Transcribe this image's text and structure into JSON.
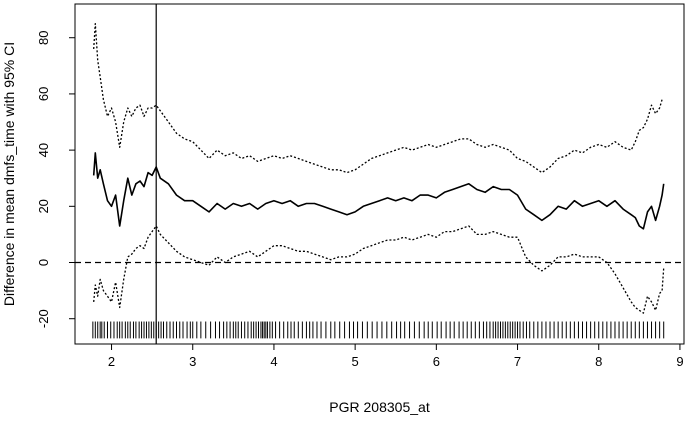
{
  "chart_data": {
    "type": "line",
    "title": "",
    "xlabel": "PGR 208305_at",
    "ylabel": "Difference in mean dmfs_time with 95% CI",
    "xlim": [
      1.55,
      9.05
    ],
    "ylim": [
      -29,
      92
    ],
    "x_ticks": [
      2,
      3,
      4,
      5,
      6,
      7,
      8,
      9
    ],
    "y_ticks": [
      -20,
      0,
      20,
      40,
      60,
      80
    ],
    "grid": false,
    "legend": "none",
    "reference_lines": {
      "horizontal_dashed_y": 0,
      "vertical_x": 2.55
    },
    "series": [
      {
        "role": "estimate",
        "style": "solid",
        "x": [
          1.78,
          1.8,
          1.83,
          1.86,
          1.9,
          1.95,
          2.0,
          2.05,
          2.1,
          2.15,
          2.2,
          2.25,
          2.3,
          2.35,
          2.4,
          2.45,
          2.5,
          2.55,
          2.6,
          2.7,
          2.8,
          2.9,
          3.0,
          3.1,
          3.2,
          3.3,
          3.4,
          3.5,
          3.6,
          3.7,
          3.8,
          3.9,
          4.0,
          4.1,
          4.2,
          4.3,
          4.4,
          4.5,
          4.6,
          4.7,
          4.8,
          4.9,
          5.0,
          5.1,
          5.2,
          5.3,
          5.4,
          5.5,
          5.6,
          5.7,
          5.8,
          5.9,
          6.0,
          6.1,
          6.2,
          6.3,
          6.4,
          6.5,
          6.6,
          6.7,
          6.8,
          6.9,
          7.0,
          7.1,
          7.2,
          7.3,
          7.4,
          7.5,
          7.6,
          7.7,
          7.8,
          7.9,
          8.0,
          8.1,
          8.2,
          8.3,
          8.4,
          8.45,
          8.5,
          8.55,
          8.6,
          8.65,
          8.7,
          8.75,
          8.78,
          8.8
        ],
        "y": [
          31,
          39,
          30,
          33,
          28,
          22,
          20,
          24,
          13,
          22,
          30,
          24,
          28,
          29,
          27,
          32,
          31,
          34,
          30,
          28,
          24,
          22,
          22,
          20,
          18,
          21,
          19,
          21,
          20,
          21,
          19,
          21,
          22,
          21,
          22,
          20,
          21,
          21,
          20,
          19,
          18,
          17,
          18,
          20,
          21,
          22,
          23,
          22,
          23,
          22,
          24,
          24,
          23,
          25,
          26,
          27,
          28,
          26,
          25,
          27,
          26,
          26,
          24,
          19,
          17,
          15,
          17,
          20,
          19,
          22,
          20,
          21,
          22,
          20,
          22,
          19,
          17,
          16,
          13,
          12,
          18,
          20,
          15,
          20,
          24,
          28
        ]
      },
      {
        "role": "upper_ci",
        "style": "dotted",
        "x": [
          1.78,
          1.8,
          1.83,
          1.86,
          1.9,
          1.95,
          2.0,
          2.05,
          2.1,
          2.15,
          2.2,
          2.25,
          2.3,
          2.35,
          2.4,
          2.45,
          2.5,
          2.55,
          2.6,
          2.7,
          2.8,
          2.9,
          3.0,
          3.1,
          3.2,
          3.3,
          3.4,
          3.5,
          3.6,
          3.7,
          3.8,
          3.9,
          4.0,
          4.1,
          4.2,
          4.3,
          4.4,
          4.5,
          4.6,
          4.7,
          4.8,
          4.9,
          5.0,
          5.1,
          5.2,
          5.3,
          5.4,
          5.5,
          5.6,
          5.7,
          5.8,
          5.9,
          6.0,
          6.1,
          6.2,
          6.3,
          6.4,
          6.5,
          6.6,
          6.7,
          6.8,
          6.9,
          7.0,
          7.1,
          7.2,
          7.3,
          7.4,
          7.5,
          7.6,
          7.7,
          7.8,
          7.9,
          8.0,
          8.1,
          8.2,
          8.3,
          8.4,
          8.45,
          8.5,
          8.55,
          8.6,
          8.65,
          8.7,
          8.75,
          8.78,
          8.8
        ],
        "y": [
          76,
          85,
          72,
          66,
          58,
          52,
          55,
          50,
          41,
          50,
          55,
          52,
          55,
          56,
          52,
          55,
          55,
          56,
          54,
          50,
          46,
          44,
          43,
          40,
          37,
          40,
          38,
          39,
          37,
          38,
          36,
          37,
          38,
          37,
          38,
          37,
          36,
          35,
          34,
          33,
          33,
          32,
          33,
          35,
          37,
          38,
          39,
          40,
          41,
          40,
          41,
          42,
          41,
          42,
          43,
          44,
          44,
          42,
          41,
          42,
          41,
          40,
          37,
          36,
          34,
          32,
          34,
          37,
          38,
          40,
          39,
          41,
          42,
          41,
          43,
          41,
          40,
          43,
          47,
          48,
          51,
          56,
          53,
          55,
          58,
          58
        ]
      },
      {
        "role": "lower_ci",
        "style": "dotted",
        "x": [
          1.78,
          1.8,
          1.83,
          1.86,
          1.9,
          1.95,
          2.0,
          2.05,
          2.1,
          2.15,
          2.2,
          2.25,
          2.3,
          2.35,
          2.4,
          2.45,
          2.5,
          2.55,
          2.6,
          2.7,
          2.8,
          2.9,
          3.0,
          3.1,
          3.2,
          3.3,
          3.4,
          3.5,
          3.6,
          3.7,
          3.8,
          3.9,
          4.0,
          4.1,
          4.2,
          4.3,
          4.4,
          4.5,
          4.6,
          4.7,
          4.8,
          4.9,
          5.0,
          5.1,
          5.2,
          5.3,
          5.4,
          5.5,
          5.6,
          5.7,
          5.8,
          5.9,
          6.0,
          6.1,
          6.2,
          6.3,
          6.4,
          6.5,
          6.6,
          6.7,
          6.8,
          6.9,
          7.0,
          7.1,
          7.2,
          7.3,
          7.4,
          7.5,
          7.6,
          7.7,
          7.8,
          7.9,
          8.0,
          8.1,
          8.2,
          8.3,
          8.4,
          8.45,
          8.5,
          8.55,
          8.6,
          8.65,
          8.7,
          8.75,
          8.78,
          8.8
        ],
        "y": [
          -14,
          -8,
          -12,
          -6,
          -10,
          -12,
          -14,
          -7,
          -16,
          -6,
          2,
          3,
          5,
          6,
          5,
          9,
          11,
          13,
          10,
          7,
          4,
          2,
          1,
          0,
          -1,
          2,
          0,
          2,
          3,
          4,
          2,
          4,
          6,
          6,
          5,
          4,
          4,
          3,
          2,
          1,
          2,
          2,
          3,
          5,
          6,
          7,
          8,
          8,
          9,
          8,
          9,
          10,
          9,
          11,
          11,
          12,
          13,
          10,
          10,
          11,
          10,
          9,
          9,
          2,
          -1,
          -3,
          -1,
          2,
          2,
          3,
          2,
          2,
          2,
          0,
          -4,
          -9,
          -14,
          -16,
          -17,
          -18,
          -12,
          -14,
          -17,
          -11,
          -10,
          -2
        ]
      }
    ],
    "rug_x": [
      1.77,
      1.8,
      1.83,
      1.86,
      1.88,
      1.91,
      1.95,
      1.99,
      2.03,
      2.07,
      2.1,
      2.13,
      2.17,
      2.2,
      2.23,
      2.27,
      2.3,
      2.34,
      2.37,
      2.4,
      2.43,
      2.46,
      2.49,
      2.52,
      2.55,
      2.58,
      2.61,
      2.64,
      2.68,
      2.72,
      2.76,
      2.8,
      2.84,
      2.88,
      2.93,
      2.97,
      3.0,
      3.05,
      3.1,
      3.16,
      3.22,
      3.28,
      3.33,
      3.38,
      3.42,
      3.46,
      3.5,
      3.53,
      3.56,
      3.6,
      3.64,
      3.68,
      3.72,
      3.75,
      3.78,
      3.81,
      3.84,
      3.86,
      3.88,
      3.9,
      3.92,
      3.95,
      3.98,
      4.02,
      4.07,
      4.12,
      4.17,
      4.21,
      4.25,
      4.3,
      4.35,
      4.4,
      4.44,
      4.48,
      4.53,
      4.58,
      4.64,
      4.7,
      4.75,
      4.81,
      4.87,
      4.93,
      4.98,
      5.03,
      5.09,
      5.15,
      5.21,
      5.27,
      5.33,
      5.39,
      5.45,
      5.51,
      5.56,
      5.61,
      5.67,
      5.73,
      5.79,
      5.85,
      5.9,
      5.95,
      6.01,
      6.06,
      6.12,
      6.17,
      6.22,
      6.28,
      6.33,
      6.38,
      6.43,
      6.48,
      6.53,
      6.58,
      6.62,
      6.66,
      6.7,
      6.73,
      6.76,
      6.79,
      6.82,
      6.85,
      6.88,
      6.91,
      6.94,
      6.97,
      7.0,
      7.03,
      7.07,
      7.11,
      7.15,
      7.2,
      7.25,
      7.3,
      7.35,
      7.4,
      7.45,
      7.5,
      7.55,
      7.6,
      7.65,
      7.7,
      7.75,
      7.8,
      7.85,
      7.9,
      7.95,
      8.0,
      8.05,
      8.1,
      8.15,
      8.2,
      8.25,
      8.3,
      8.35,
      8.4,
      8.45,
      8.5,
      8.55,
      8.6,
      8.65,
      8.7,
      8.75,
      8.8
    ]
  }
}
